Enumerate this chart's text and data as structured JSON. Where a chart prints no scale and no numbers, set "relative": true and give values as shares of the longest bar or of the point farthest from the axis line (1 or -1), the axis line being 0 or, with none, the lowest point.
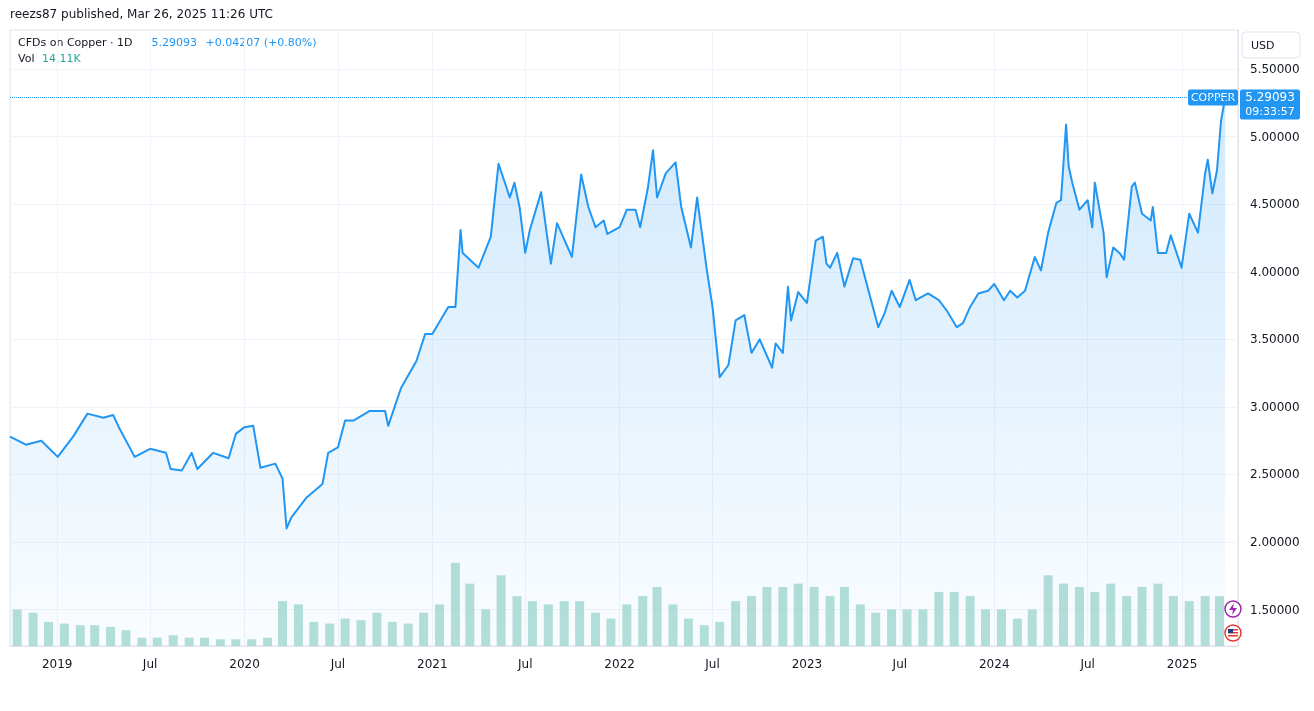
{
  "chart_data": [
    {
      "type": "area",
      "title": "CFDs on Copper · 1D",
      "ylabel": "USD",
      "annotations": [
        "reezs87 published, Mar 26, 2025 11:26 UTC",
        "5.29093",
        "+0.04207 (+0.80%)",
        "Vol",
        "14.11K",
        "09:33:57"
      ],
      "xlim": [
        "2018-10-01",
        "2025-04-20"
      ],
      "xticks": [
        {
          "value": "2019-01-01",
          "label": "2019"
        },
        {
          "value": "2019-07-01",
          "label": "Jul"
        },
        {
          "value": "2020-01-01",
          "label": "2020"
        },
        {
          "value": "2020-07-01",
          "label": "Jul"
        },
        {
          "value": "2021-01-01",
          "label": "2021"
        },
        {
          "value": "2021-07-01",
          "label": "Jul"
        },
        {
          "value": "2022-01-01",
          "label": "2022"
        },
        {
          "value": "2022-07-01",
          "label": "Jul"
        },
        {
          "value": "2023-01-01",
          "label": "2023"
        },
        {
          "value": "2023-07-01",
          "label": "Jul"
        },
        {
          "value": "2024-01-01",
          "label": "2024"
        },
        {
          "value": "2024-07-01",
          "label": "Jul"
        },
        {
          "value": "2025-01-01",
          "label": "2025"
        }
      ],
      "ylim": [
        1.23,
        5.79
      ],
      "yticks": [
        {
          "value": 1.5,
          "label": "1.50000"
        },
        {
          "value": 2,
          "label": "2.00000"
        },
        {
          "value": 2.5,
          "label": "2.50000"
        },
        {
          "value": 3,
          "label": "3.00000"
        },
        {
          "value": 3.5,
          "label": "3.50000"
        },
        {
          "value": 4,
          "label": "4.00000"
        },
        {
          "value": 4.5,
          "label": "4.50000"
        },
        {
          "value": 5,
          "label": "5.00000"
        },
        {
          "value": 5.5,
          "label": "5.50000"
        }
      ],
      "grid": true,
      "ref_lines": [
        {
          "axis": "y",
          "value": 5.29093,
          "label": "COPPER",
          "color": "#2196f3",
          "line_style": "dotted"
        }
      ],
      "series": [
        {
          "color": "#2196f3",
          "x": [
            "2018-10-01",
            "2018-11-01",
            "2018-12-01",
            "2019-01-02",
            "2019-02-01",
            "2019-03-01",
            "2019-04-01",
            "2019-04-20",
            "2019-05-01",
            "2019-06-01",
            "2019-07-01",
            "2019-08-01",
            "2019-08-10",
            "2019-09-01",
            "2019-09-20",
            "2019-10-01",
            "2019-11-01",
            "2019-12-01",
            "2019-12-15",
            "2020-01-01",
            "2020-01-18",
            "2020-02-01",
            "2020-03-01",
            "2020-03-15",
            "2020-03-23",
            "2020-04-01",
            "2020-05-01",
            "2020-06-01",
            "2020-06-12",
            "2020-07-01",
            "2020-07-15",
            "2020-08-01",
            "2020-09-01",
            "2020-10-01",
            "2020-10-07",
            "2020-11-01",
            "2020-12-01",
            "2020-12-18",
            "2021-01-01",
            "2021-02-01",
            "2021-02-15",
            "2021-02-25",
            "2021-03-01",
            "2021-04-01",
            "2021-04-25",
            "2021-05-01",
            "2021-05-10",
            "2021-06-01",
            "2021-06-10",
            "2021-06-20",
            "2021-07-01",
            "2021-07-10",
            "2021-08-01",
            "2021-08-20",
            "2021-09-01",
            "2021-09-30",
            "2021-10-18",
            "2021-11-01",
            "2021-11-15",
            "2021-12-01",
            "2021-12-08",
            "2022-01-01",
            "2022-01-15",
            "2022-02-01",
            "2022-02-10",
            "2022-02-25",
            "2022-03-07",
            "2022-03-15",
            "2022-04-01",
            "2022-04-20",
            "2022-05-01",
            "2022-05-20",
            "2022-06-01",
            "2022-06-20",
            "2022-07-01",
            "2022-07-15",
            "2022-08-01",
            "2022-08-15",
            "2022-09-01",
            "2022-09-15",
            "2022-10-01",
            "2022-10-25",
            "2022-11-01",
            "2022-11-15",
            "2022-11-25",
            "2022-12-01",
            "2022-12-15",
            "2023-01-01",
            "2023-01-18",
            "2023-02-01",
            "2023-02-08",
            "2023-02-15",
            "2023-03-01",
            "2023-03-15",
            "2023-04-01",
            "2023-04-15",
            "2023-05-01",
            "2023-05-20",
            "2023-06-01",
            "2023-06-15",
            "2023-07-01",
            "2023-07-20",
            "2023-08-01",
            "2023-08-25",
            "2023-09-15",
            "2023-10-01",
            "2023-10-20",
            "2023-11-01",
            "2023-11-15",
            "2023-12-01",
            "2023-12-20",
            "2024-01-01",
            "2024-01-20",
            "2024-02-01",
            "2024-02-15",
            "2024-03-01",
            "2024-03-20",
            "2024-04-01",
            "2024-04-15",
            "2024-05-01",
            "2024-05-10",
            "2024-05-20",
            "2024-05-25",
            "2024-06-01",
            "2024-06-15",
            "2024-07-01",
            "2024-07-10",
            "2024-07-15",
            "2024-08-01",
            "2024-08-07",
            "2024-08-20",
            "2024-09-01",
            "2024-09-10",
            "2024-09-25",
            "2024-10-01",
            "2024-10-15",
            "2024-11-01",
            "2024-11-05",
            "2024-11-15",
            "2024-12-01",
            "2024-12-10",
            "2024-12-31",
            "2025-01-15",
            "2025-02-01",
            "2025-02-15",
            "2025-02-20",
            "2025-03-01",
            "2025-03-10",
            "2025-03-18",
            "2025-03-26"
          ],
          "values": [
            2.78,
            2.72,
            2.75,
            2.63,
            2.78,
            2.95,
            2.92,
            2.94,
            2.85,
            2.63,
            2.69,
            2.66,
            2.54,
            2.53,
            2.66,
            2.54,
            2.66,
            2.62,
            2.8,
            2.85,
            2.86,
            2.55,
            2.58,
            2.47,
            2.1,
            2.18,
            2.33,
            2.43,
            2.66,
            2.7,
            2.9,
            2.9,
            2.97,
            2.97,
            2.86,
            3.14,
            3.34,
            3.54,
            3.54,
            3.74,
            3.74,
            4.31,
            4.14,
            4.03,
            4.26,
            4.48,
            4.8,
            4.55,
            4.66,
            4.48,
            4.14,
            4.31,
            4.59,
            4.06,
            4.36,
            4.11,
            4.72,
            4.48,
            4.33,
            4.38,
            4.28,
            4.33,
            4.46,
            4.46,
            4.33,
            4.62,
            4.9,
            4.55,
            4.73,
            4.81,
            4.48,
            4.18,
            4.55,
            4.01,
            3.74,
            3.22,
            3.31,
            3.64,
            3.68,
            3.4,
            3.5,
            3.29,
            3.47,
            3.4,
            3.89,
            3.64,
            3.85,
            3.77,
            4.23,
            4.26,
            4.06,
            4.03,
            4.14,
            3.89,
            4.1,
            4.09,
            3.86,
            3.59,
            3.69,
            3.86,
            3.74,
            3.94,
            3.79,
            3.84,
            3.79,
            3.71,
            3.59,
            3.62,
            3.74,
            3.84,
            3.86,
            3.91,
            3.79,
            3.86,
            3.81,
            3.86,
            4.11,
            4.01,
            4.29,
            4.51,
            4.53,
            5.09,
            4.78,
            4.66,
            4.46,
            4.53,
            4.33,
            4.66,
            4.29,
            3.96,
            4.18,
            4.14,
            4.09,
            4.63,
            4.66,
            4.43,
            4.38,
            4.48,
            4.14,
            4.14,
            4.27,
            4.03,
            4.43,
            4.29,
            4.73,
            4.83,
            4.58,
            4.75,
            5.12,
            5.29
          ]
        }
      ]
    },
    {
      "type": "bar",
      "relative": true,
      "color": "#9fd6cf",
      "xlim": [
        "2018-10-01",
        "2025-04-20"
      ],
      "x": [
        "2018-10-15",
        "2018-11-15",
        "2018-12-15",
        "2019-01-15",
        "2019-02-15",
        "2019-03-15",
        "2019-04-15",
        "2019-05-15",
        "2019-06-15",
        "2019-07-15",
        "2019-08-15",
        "2019-09-15",
        "2019-10-15",
        "2019-11-15",
        "2019-12-15",
        "2020-01-15",
        "2020-02-15",
        "2020-03-15",
        "2020-04-15",
        "2020-05-15",
        "2020-06-15",
        "2020-07-15",
        "2020-08-15",
        "2020-09-15",
        "2020-10-15",
        "2020-11-15",
        "2020-12-15",
        "2021-01-15",
        "2021-02-15",
        "2021-03-15",
        "2021-04-15",
        "2021-05-15",
        "2021-06-15",
        "2021-07-15",
        "2021-08-15",
        "2021-09-15",
        "2021-10-15",
        "2021-11-15",
        "2021-12-15",
        "2022-01-15",
        "2022-02-15",
        "2022-03-15",
        "2022-04-15",
        "2022-05-15",
        "2022-06-15",
        "2022-07-15",
        "2022-08-15",
        "2022-09-15",
        "2022-10-15",
        "2022-11-15",
        "2022-12-15",
        "2023-01-15",
        "2023-02-15",
        "2023-03-15",
        "2023-04-15",
        "2023-05-15",
        "2023-06-15",
        "2023-07-15",
        "2023-08-15",
        "2023-09-15",
        "2023-10-15",
        "2023-11-15",
        "2023-12-15",
        "2024-01-15",
        "2024-02-15",
        "2024-03-15",
        "2024-04-15",
        "2024-05-15",
        "2024-06-15",
        "2024-07-15",
        "2024-08-15",
        "2024-09-15",
        "2024-10-15",
        "2024-11-15",
        "2024-12-15",
        "2025-01-15",
        "2025-02-15",
        "2025-03-15"
      ],
      "values": [
        0.44,
        0.4,
        0.29,
        0.27,
        0.25,
        0.25,
        0.23,
        0.19,
        0.1,
        0.1,
        0.13,
        0.1,
        0.1,
        0.08,
        0.08,
        0.08,
        0.1,
        0.54,
        0.5,
        0.29,
        0.27,
        0.33,
        0.31,
        0.4,
        0.29,
        0.27,
        0.4,
        0.5,
        1,
        0.75,
        0.44,
        0.85,
        0.6,
        0.54,
        0.5,
        0.54,
        0.54,
        0.4,
        0.33,
        0.5,
        0.6,
        0.71,
        0.5,
        0.33,
        0.25,
        0.29,
        0.54,
        0.6,
        0.71,
        0.71,
        0.75,
        0.71,
        0.6,
        0.71,
        0.5,
        0.4,
        0.44,
        0.44,
        0.44,
        0.65,
        0.65,
        0.6,
        0.44,
        0.44,
        0.33,
        0.44,
        0.85,
        0.75,
        0.71,
        0.65,
        0.75,
        0.6,
        0.71,
        0.75,
        0.6,
        0.54,
        0.6,
        0.6
      ]
    }
  ]
}
